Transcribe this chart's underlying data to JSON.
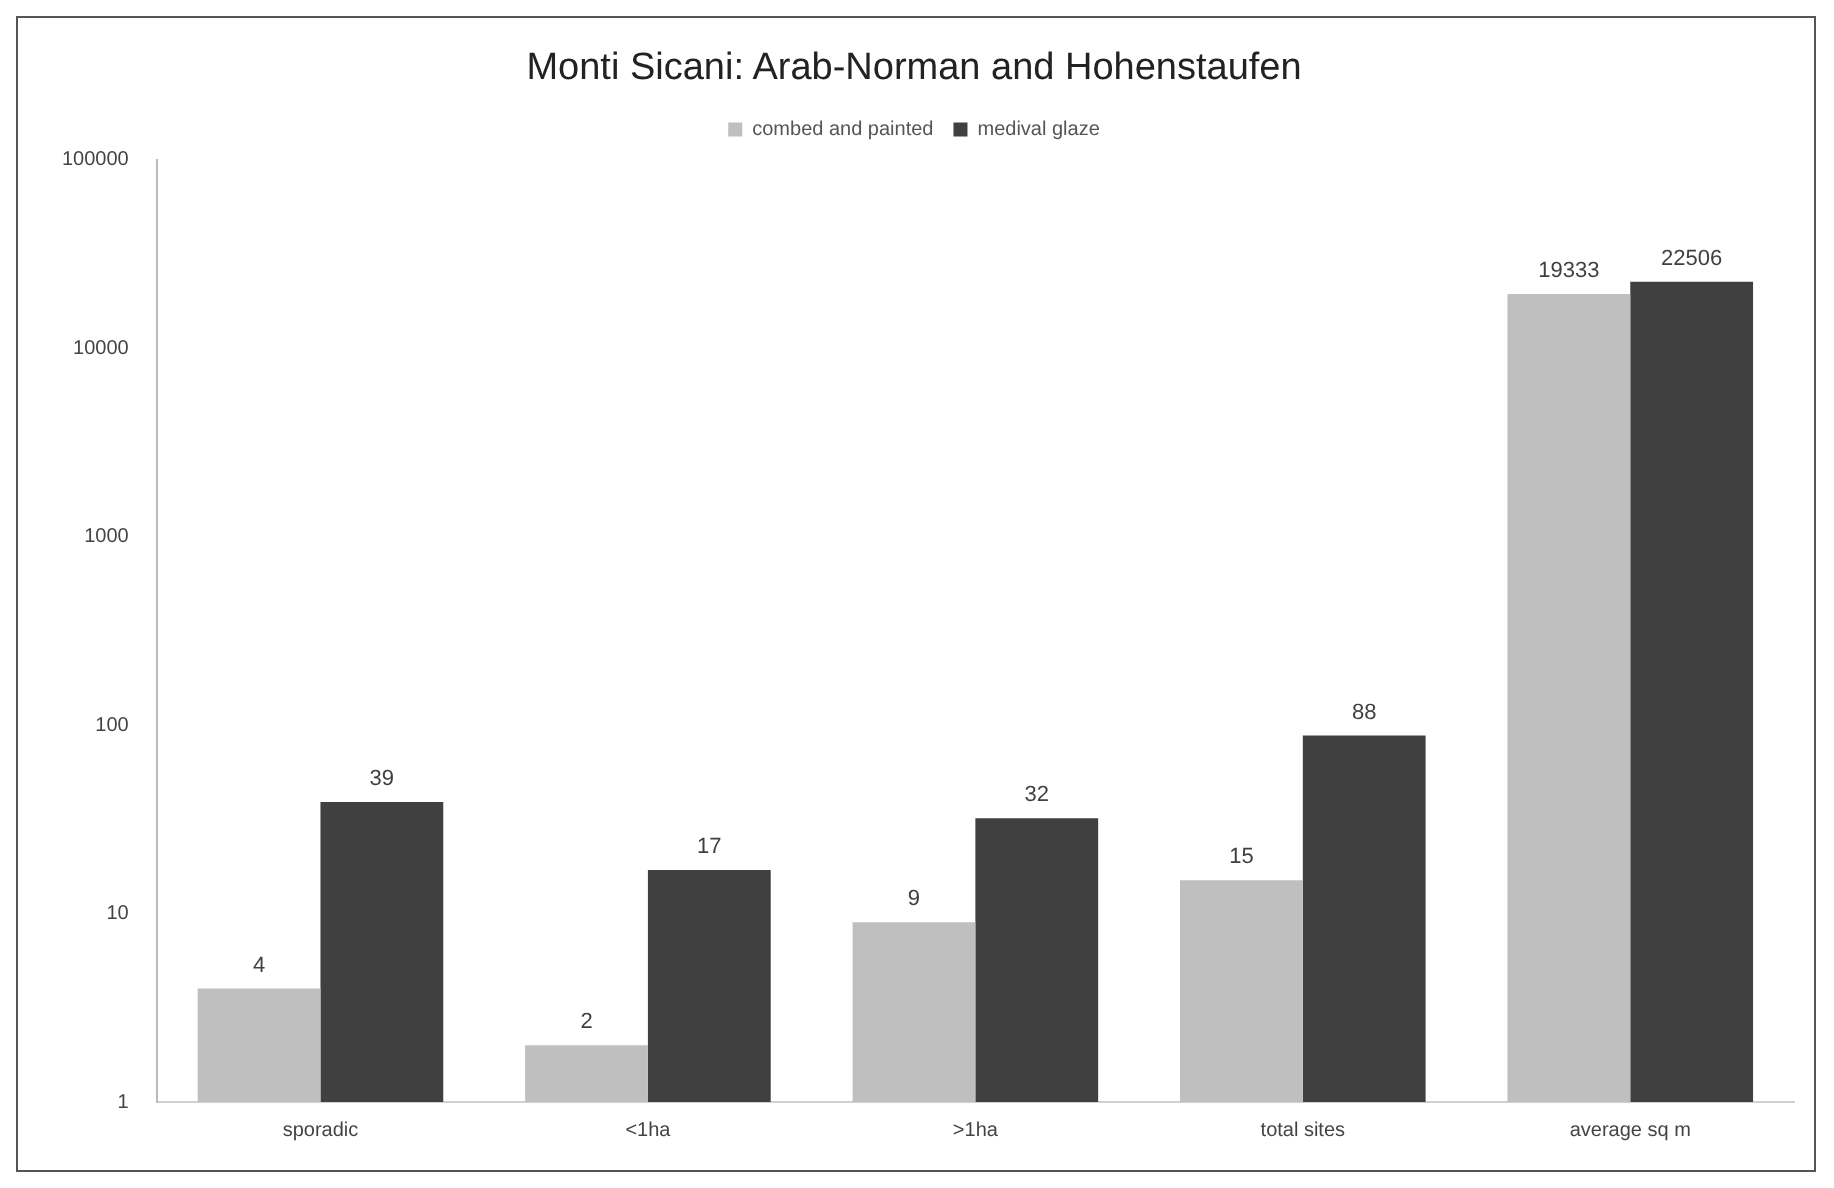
{
  "chart_data": {
    "type": "bar",
    "title": "Monti Sicani: Arab-Norman and Hohenstaufen",
    "categories": [
      "sporadic",
      "<1ha",
      ">1ha",
      "total sites",
      "average sq m"
    ],
    "series": [
      {
        "name": "combed and painted",
        "color": "#bfbfbf",
        "values": [
          4,
          2,
          9,
          15,
          19333
        ]
      },
      {
        "name": "medival glaze",
        "color": "#404040",
        "values": [
          39,
          17,
          32,
          88,
          22506
        ]
      }
    ],
    "log": true,
    "ylim": [
      1,
      100000
    ],
    "yticks": [
      1,
      10,
      100,
      1000,
      10000,
      100000
    ],
    "grid": false,
    "legend": "top",
    "data_labels": true
  }
}
